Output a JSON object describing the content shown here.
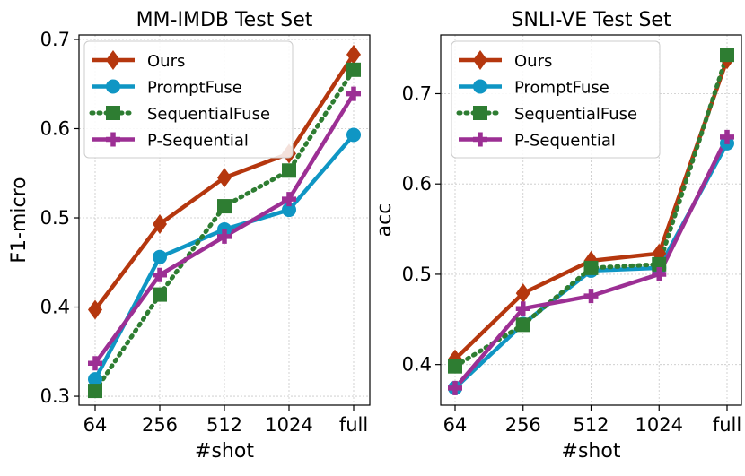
{
  "figure": {
    "background": "#ffffff"
  },
  "series_styles": [
    {
      "name": "Ours",
      "color": "#b5370e",
      "marker": "diamond",
      "dash": "solid"
    },
    {
      "name": "PromptFuse",
      "color": "#0f96c4",
      "marker": "circle",
      "dash": "solid"
    },
    {
      "name": "SequentialFuse",
      "color": "#2e7d32",
      "marker": "square",
      "dash": "dotted"
    },
    {
      "name": "P-Sequential",
      "color": "#9c2f94",
      "marker": "plus",
      "dash": "solid"
    }
  ],
  "chart_data": [
    {
      "type": "line",
      "title": "MM-IMDB Test Set",
      "xlabel": "#shot",
      "ylabel": "F1-micro",
      "categories": [
        "64",
        "256",
        "512",
        "1024",
        "full"
      ],
      "ylim": [
        0.29,
        0.705
      ],
      "yticks": [
        "0.3",
        "0.4",
        "0.5",
        "0.6",
        "0.7"
      ],
      "ytick_values": [
        0.3,
        0.4,
        0.5,
        0.6,
        0.7
      ],
      "legend_position": "top-left",
      "grid": true,
      "series": [
        {
          "name": "Ours",
          "values": [
            0.397,
            0.493,
            0.545,
            0.572,
            0.683
          ]
        },
        {
          "name": "PromptFuse",
          "values": [
            0.319,
            0.456,
            0.487,
            0.509,
            0.593
          ]
        },
        {
          "name": "SequentialFuse",
          "values": [
            0.306,
            0.414,
            0.513,
            0.553,
            0.666
          ]
        },
        {
          "name": "P-Sequential",
          "values": [
            0.337,
            0.436,
            0.479,
            0.521,
            0.639
          ]
        }
      ]
    },
    {
      "type": "line",
      "title": "SNLI-VE Test Set",
      "xlabel": "#shot",
      "ylabel": "acc",
      "categories": [
        "64",
        "256",
        "512",
        "1024",
        "full"
      ],
      "ylim": [
        0.355,
        0.765
      ],
      "yticks": [
        "0.4",
        "0.5",
        "0.6",
        "0.7"
      ],
      "ytick_values": [
        0.4,
        0.5,
        0.6,
        0.7
      ],
      "legend_position": "top-left",
      "grid": true,
      "series": [
        {
          "name": "Ours",
          "values": [
            0.406,
            0.479,
            0.515,
            0.523,
            0.738
          ]
        },
        {
          "name": "PromptFuse",
          "values": [
            0.374,
            0.445,
            0.504,
            0.507,
            0.645
          ]
        },
        {
          "name": "SequentialFuse",
          "values": [
            0.398,
            0.444,
            0.507,
            0.511,
            0.743
          ]
        },
        {
          "name": "P-Sequential",
          "values": [
            0.374,
            0.462,
            0.476,
            0.5,
            0.652
          ]
        }
      ]
    }
  ]
}
